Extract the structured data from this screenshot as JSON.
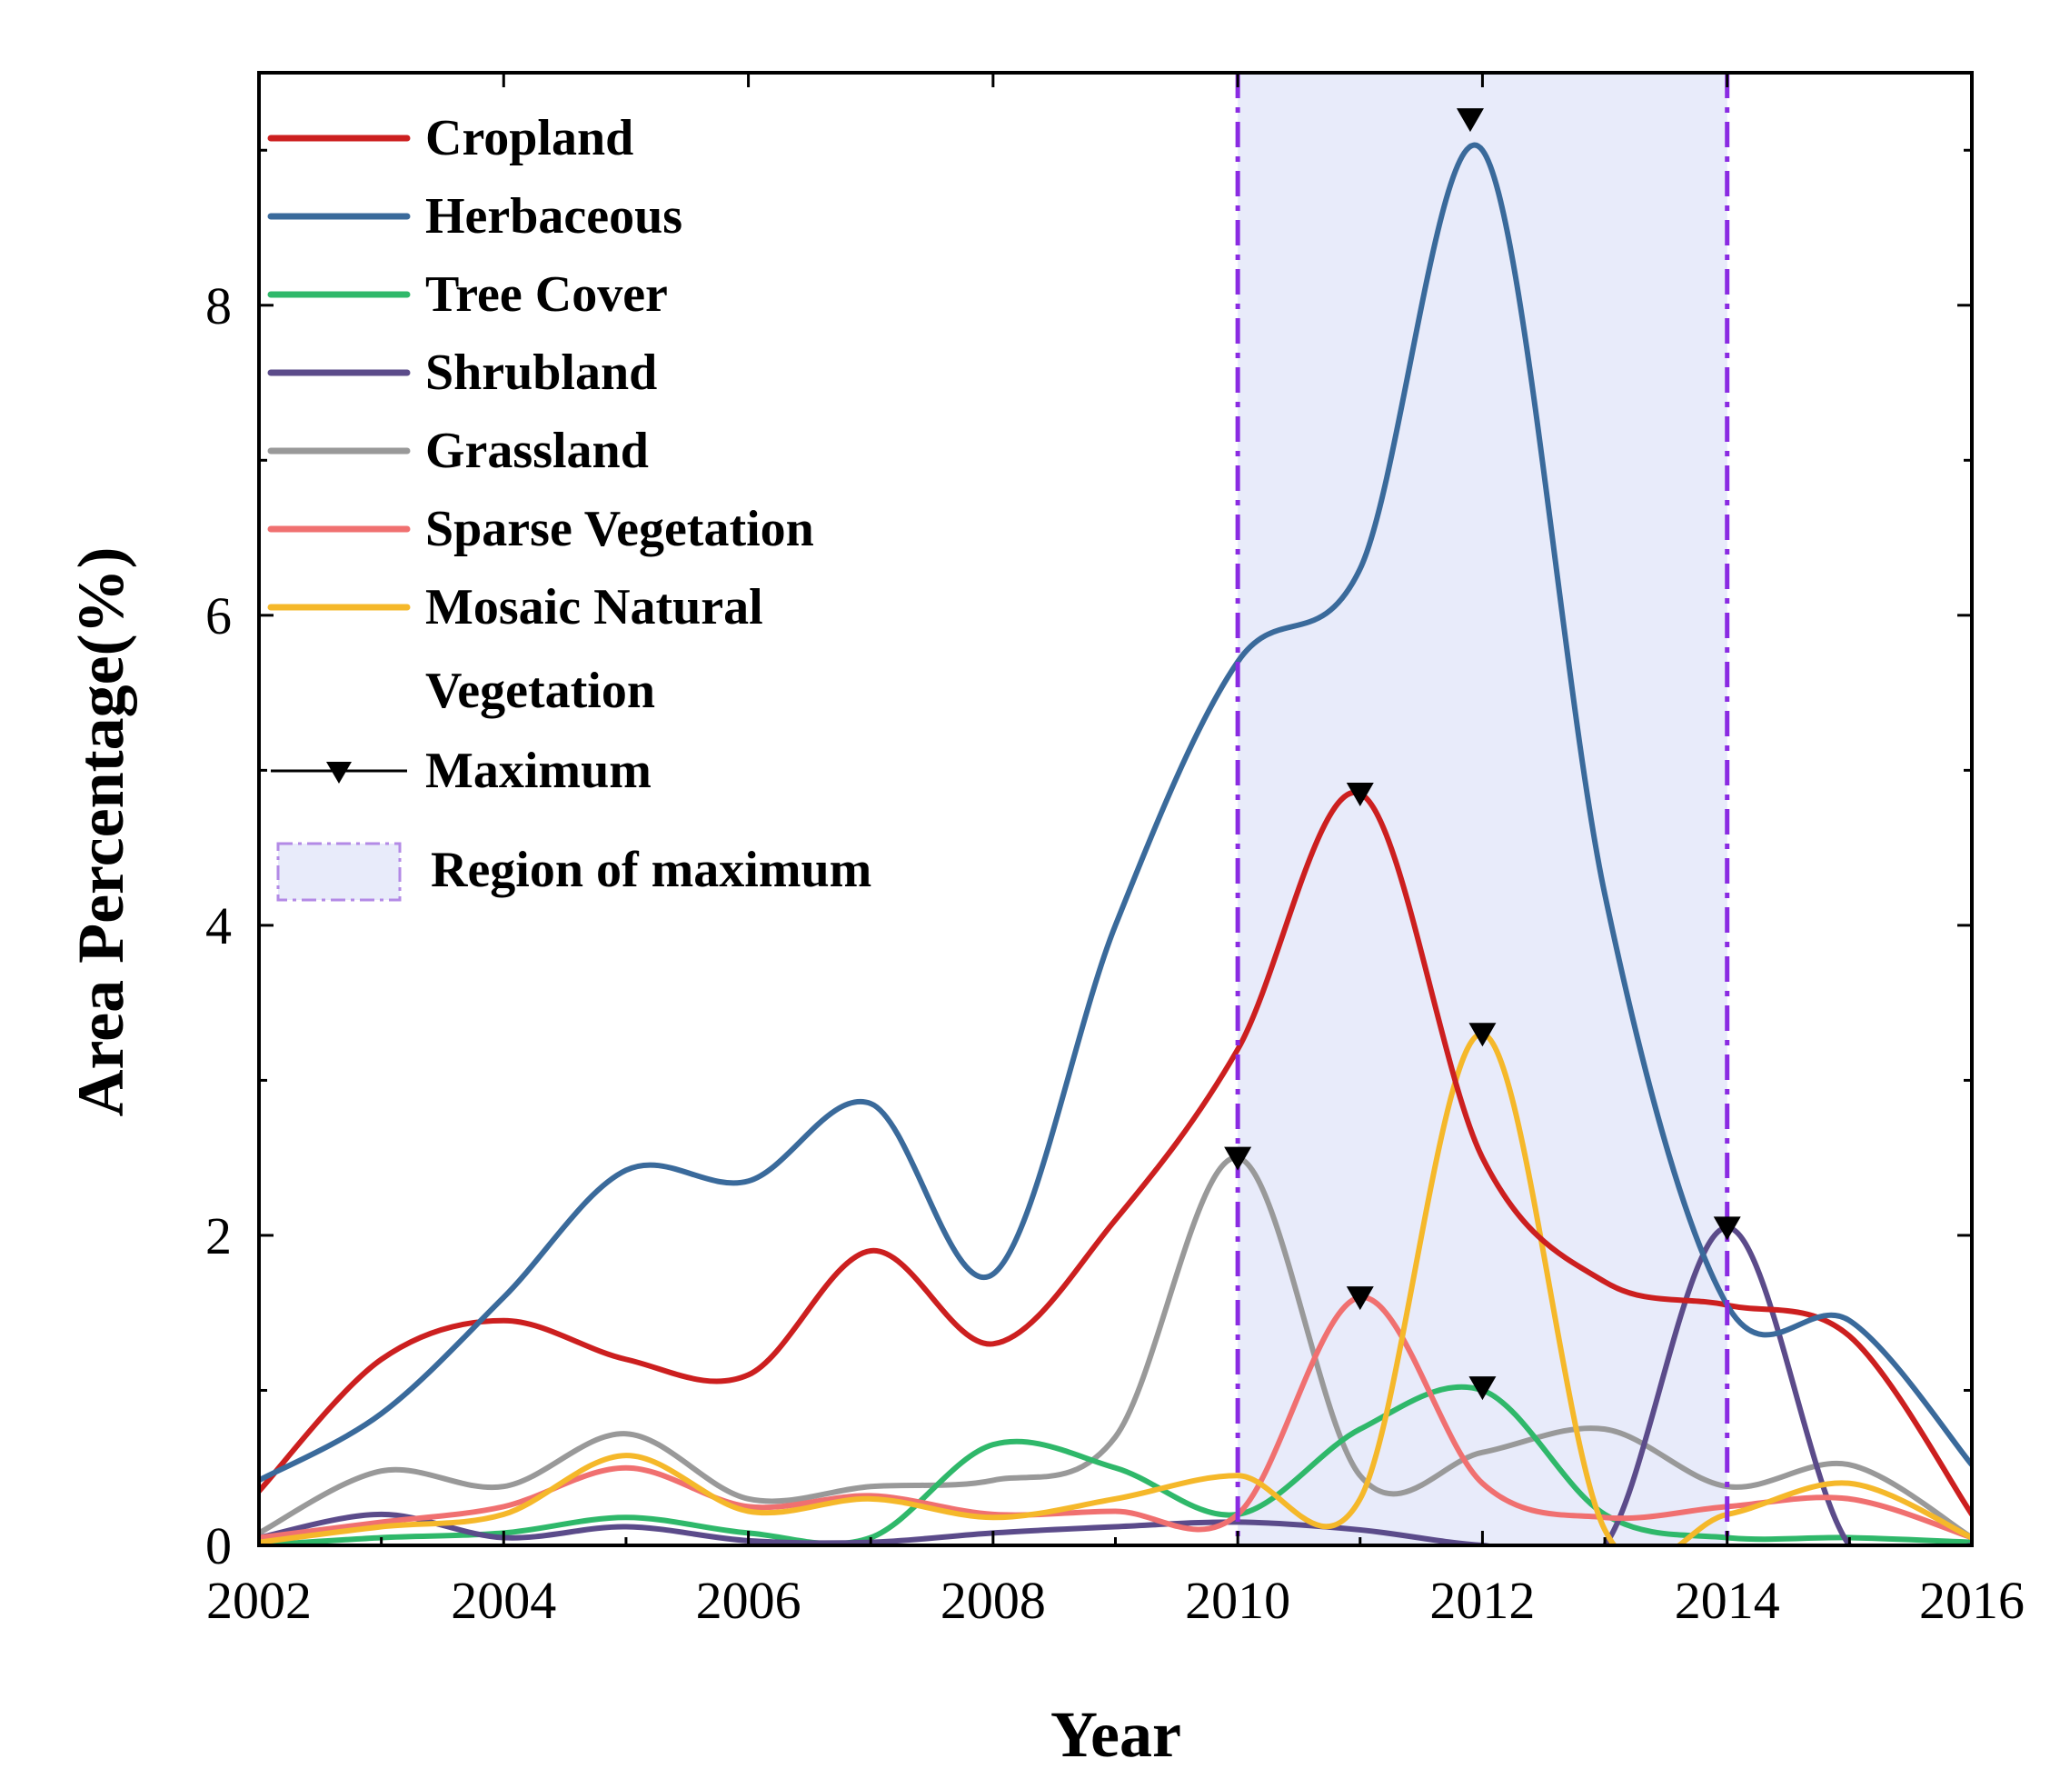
{
  "chart_data": {
    "type": "line",
    "xlabel": "Year",
    "ylabel": "Area Percentage(%)",
    "xlim": [
      2002,
      2016
    ],
    "ylim": [
      0,
      9.5
    ],
    "xticks": [
      2002,
      2004,
      2006,
      2008,
      2010,
      2012,
      2014,
      2016
    ],
    "yticks": [
      0,
      2,
      4,
      6,
      8
    ],
    "grid": false,
    "legend_position": "top-left",
    "region_of_maximum": [
      2010,
      2014
    ],
    "series": [
      {
        "name": "Cropland",
        "color": "#cc1f1f",
        "x": [
          2002,
          2003,
          2004,
          2005,
          2006,
          2007,
          2008,
          2009,
          2010,
          2011,
          2012,
          2013,
          2014,
          2015,
          2016
        ],
        "y": [
          0.35,
          1.2,
          1.45,
          1.2,
          1.1,
          1.9,
          1.3,
          2.1,
          3.2,
          4.85,
          2.5,
          1.7,
          1.55,
          1.35,
          0.2
        ]
      },
      {
        "name": "Herbaceous",
        "color": "#3a6a9b",
        "x": [
          2002,
          2003,
          2004,
          2005,
          2006,
          2007,
          2008,
          2009,
          2010,
          2011,
          2012,
          2013,
          2014,
          2015,
          2016
        ],
        "y": [
          0.42,
          0.85,
          1.6,
          2.42,
          2.35,
          2.85,
          1.75,
          4.0,
          5.7,
          6.3,
          9.0,
          4.2,
          1.55,
          1.45,
          0.52
        ]
      },
      {
        "name": "Tree Cover",
        "color": "#2fb86a",
        "x": [
          2002,
          2003,
          2004,
          2005,
          2006,
          2007,
          2008,
          2009,
          2010,
          2011,
          2012,
          2013,
          2014,
          2015,
          2016
        ],
        "y": [
          0.0,
          0.05,
          0.08,
          0.18,
          0.08,
          0.05,
          0.65,
          0.5,
          0.2,
          0.75,
          1.0,
          0.2,
          0.05,
          0.05,
          0.02
        ]
      },
      {
        "name": "Shrubland",
        "color": "#5b4b8a",
        "x": [
          2002,
          2003,
          2004,
          2005,
          2006,
          2007,
          2008,
          2009,
          2010,
          2011,
          2012,
          2013,
          2014,
          2015,
          2016
        ],
        "y": [
          0.05,
          0.2,
          0.05,
          0.12,
          0.03,
          0.02,
          0.08,
          0.12,
          0.15,
          0.1,
          0.0,
          0.0,
          2.05,
          0.0,
          0.0
        ]
      },
      {
        "name": "Grassland",
        "color": "#999999",
        "x": [
          2002,
          2003,
          2004,
          2005,
          2006,
          2007,
          2008,
          2009,
          2010,
          2011,
          2012,
          2013,
          2014,
          2015,
          2016
        ],
        "y": [
          0.08,
          0.48,
          0.38,
          0.72,
          0.3,
          0.38,
          0.42,
          0.7,
          2.5,
          0.45,
          0.6,
          0.75,
          0.38,
          0.52,
          0.05
        ]
      },
      {
        "name": "Sparse Vegetation",
        "color": "#f07070",
        "x": [
          2002,
          2003,
          2004,
          2005,
          2006,
          2007,
          2008,
          2009,
          2010,
          2011,
          2012,
          2013,
          2014,
          2015,
          2016
        ],
        "y": [
          0.05,
          0.15,
          0.25,
          0.5,
          0.25,
          0.32,
          0.2,
          0.22,
          0.2,
          1.6,
          0.4,
          0.18,
          0.25,
          0.3,
          0.05
        ]
      },
      {
        "name": "Mosaic Natural Vegetation",
        "color": "#f5b82a",
        "x": [
          2002,
          2003,
          2004,
          2005,
          2006,
          2007,
          2008,
          2009,
          2010,
          2011,
          2012,
          2013,
          2014,
          2015,
          2016
        ],
        "y": [
          0.02,
          0.12,
          0.2,
          0.58,
          0.22,
          0.3,
          0.18,
          0.3,
          0.45,
          0.3,
          3.3,
          0.1,
          0.2,
          0.4,
          0.05
        ]
      }
    ],
    "maxima": [
      {
        "x": 2011.9,
        "y": 9.2
      },
      {
        "x": 2011.0,
        "y": 4.85
      },
      {
        "x": 2012.0,
        "y": 3.3
      },
      {
        "x": 2010.0,
        "y": 2.5
      },
      {
        "x": 2014.0,
        "y": 2.05
      },
      {
        "x": 2011.0,
        "y": 1.6
      },
      {
        "x": 2012.0,
        "y": 1.02
      }
    ],
    "legend": {
      "entries": [
        {
          "label": "Cropland",
          "color": "#cc1f1f"
        },
        {
          "label": "Herbaceous",
          "color": "#3a6a9b"
        },
        {
          "label": "Tree Cover",
          "color": "#2fb86a"
        },
        {
          "label": "Shrubland",
          "color": "#5b4b8a"
        },
        {
          "label": "Grassland",
          "color": "#999999"
        },
        {
          "label": "Sparse Vegetation",
          "color": "#f07070"
        },
        {
          "label": "Mosaic Natural",
          "color": "#f5b82a"
        }
      ],
      "mosaic_line2": "Vegetation",
      "maximum_label": "Maximum",
      "region_label": "Region of maximum"
    }
  }
}
